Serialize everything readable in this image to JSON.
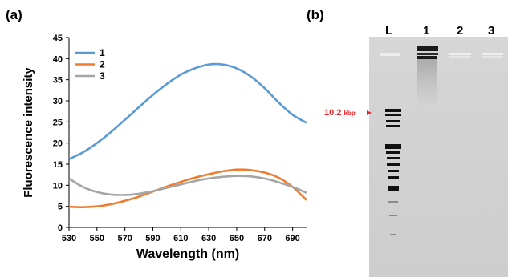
{
  "panels": {
    "a": "(a)",
    "b": "(b)"
  },
  "chart_data": {
    "type": "line",
    "title": "",
    "xlabel": "Wavelength (nm)",
    "ylabel": "Fluorescence intensity",
    "xlim": [
      530,
      700
    ],
    "ylim": [
      0,
      45
    ],
    "xticks": [
      530,
      550,
      570,
      590,
      610,
      630,
      650,
      670,
      690
    ],
    "yticks": [
      0,
      5,
      10,
      15,
      20,
      25,
      30,
      35,
      40,
      45
    ],
    "grid": false,
    "legend_position": "top-left",
    "series": [
      {
        "name": "1",
        "color": "#5b9bd5",
        "x": [
          530,
          540,
          550,
          560,
          570,
          580,
          590,
          600,
          610,
          620,
          630,
          640,
          650,
          660,
          670,
          680,
          690,
          700
        ],
        "y": [
          16.2,
          17.8,
          20.0,
          22.6,
          25.5,
          28.5,
          31.4,
          34.0,
          36.2,
          37.7,
          38.6,
          38.6,
          37.7,
          35.8,
          33.0,
          29.6,
          26.7,
          24.8
        ]
      },
      {
        "name": "2",
        "color": "#ed7d31",
        "x": [
          530,
          540,
          550,
          560,
          570,
          580,
          590,
          600,
          610,
          620,
          630,
          640,
          650,
          660,
          670,
          680,
          690,
          700
        ],
        "y": [
          4.9,
          4.8,
          5.0,
          5.5,
          6.3,
          7.3,
          8.5,
          9.7,
          10.8,
          11.8,
          12.6,
          13.3,
          13.7,
          13.6,
          13.0,
          11.8,
          9.6,
          6.5
        ]
      },
      {
        "name": "3",
        "color": "#a5a5a5",
        "x": [
          530,
          540,
          550,
          560,
          570,
          580,
          590,
          600,
          610,
          620,
          630,
          640,
          650,
          660,
          670,
          680,
          690,
          700
        ],
        "y": [
          11.6,
          9.6,
          8.4,
          7.8,
          7.7,
          8.0,
          8.6,
          9.4,
          10.2,
          11.0,
          11.6,
          12.0,
          12.2,
          12.1,
          11.6,
          10.7,
          9.6,
          8.2
        ]
      }
    ]
  },
  "gel": {
    "lanes": [
      "L",
      "1",
      "2",
      "3"
    ],
    "marker_label": "10.2",
    "marker_unit": "kbp"
  }
}
